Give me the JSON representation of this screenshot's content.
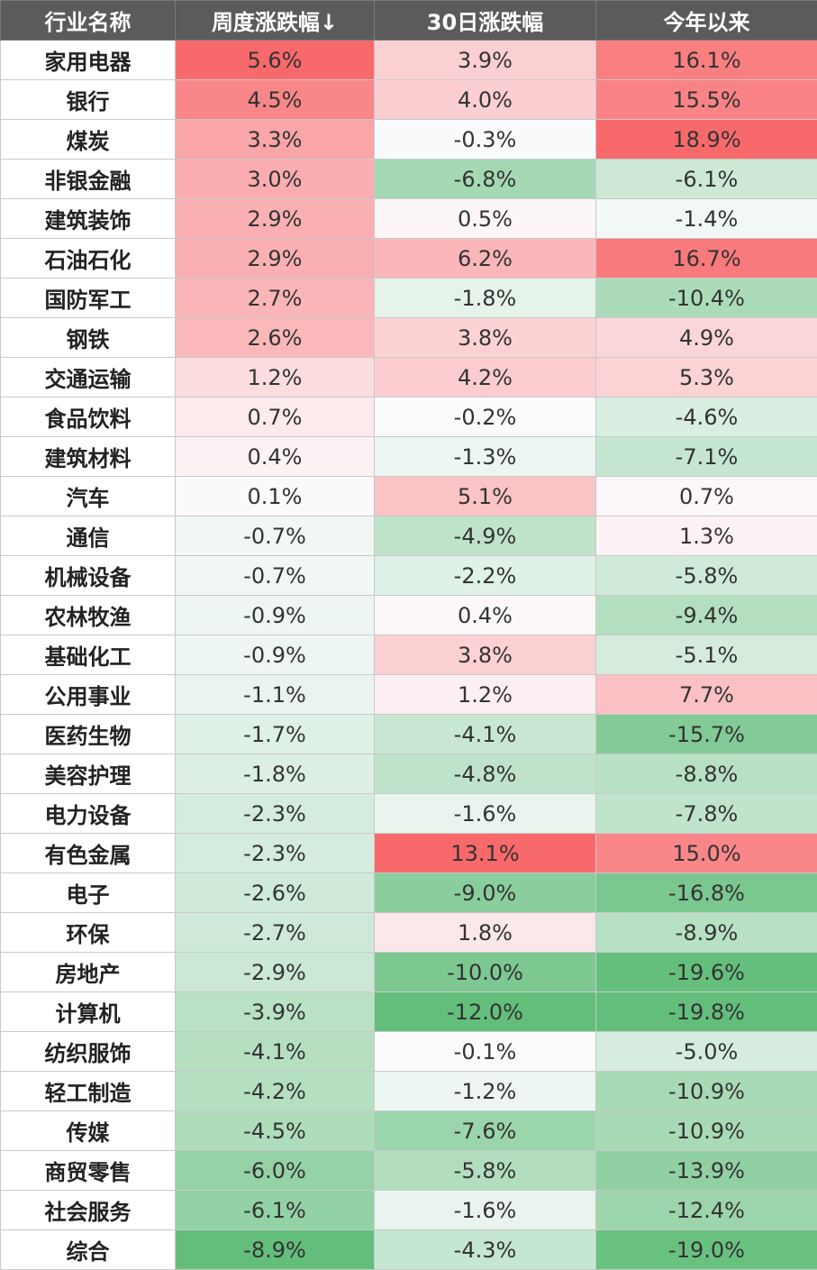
{
  "chart_data": {
    "type": "heatmap",
    "columns": [
      "行业名称",
      "周度涨跌幅↓",
      "30日涨跌幅",
      "今年以来"
    ],
    "rows": [
      {
        "name": "家用电器",
        "weekly": "5.6%",
        "d30": "3.9%",
        "ytd": "16.1%"
      },
      {
        "name": "银行",
        "weekly": "4.5%",
        "d30": "4.0%",
        "ytd": "15.5%"
      },
      {
        "name": "煤炭",
        "weekly": "3.3%",
        "d30": "-0.3%",
        "ytd": "18.9%"
      },
      {
        "name": "非银金融",
        "weekly": "3.0%",
        "d30": "-6.8%",
        "ytd": "-6.1%"
      },
      {
        "name": "建筑装饰",
        "weekly": "2.9%",
        "d30": "0.5%",
        "ytd": "-1.4%"
      },
      {
        "name": "石油石化",
        "weekly": "2.9%",
        "d30": "6.2%",
        "ytd": "16.7%"
      },
      {
        "name": "国防军工",
        "weekly": "2.7%",
        "d30": "-1.8%",
        "ytd": "-10.4%"
      },
      {
        "name": "钢铁",
        "weekly": "2.6%",
        "d30": "3.8%",
        "ytd": "4.9%"
      },
      {
        "name": "交通运输",
        "weekly": "1.2%",
        "d30": "4.2%",
        "ytd": "5.3%"
      },
      {
        "name": "食品饮料",
        "weekly": "0.7%",
        "d30": "-0.2%",
        "ytd": "-4.6%"
      },
      {
        "name": "建筑材料",
        "weekly": "0.4%",
        "d30": "-1.3%",
        "ytd": "-7.1%"
      },
      {
        "name": "汽车",
        "weekly": "0.1%",
        "d30": "5.1%",
        "ytd": "0.7%"
      },
      {
        "name": "通信",
        "weekly": "-0.7%",
        "d30": "-4.9%",
        "ytd": "1.3%"
      },
      {
        "name": "机械设备",
        "weekly": "-0.7%",
        "d30": "-2.2%",
        "ytd": "-5.8%"
      },
      {
        "name": "农林牧渔",
        "weekly": "-0.9%",
        "d30": "0.4%",
        "ytd": "-9.4%"
      },
      {
        "name": "基础化工",
        "weekly": "-0.9%",
        "d30": "3.8%",
        "ytd": "-5.1%"
      },
      {
        "name": "公用事业",
        "weekly": "-1.1%",
        "d30": "1.2%",
        "ytd": "7.7%"
      },
      {
        "name": "医药生物",
        "weekly": "-1.7%",
        "d30": "-4.1%",
        "ytd": "-15.7%"
      },
      {
        "name": "美容护理",
        "weekly": "-1.8%",
        "d30": "-4.8%",
        "ytd": "-8.8%"
      },
      {
        "name": "电力设备",
        "weekly": "-2.3%",
        "d30": "-1.6%",
        "ytd": "-7.8%"
      },
      {
        "name": "有色金属",
        "weekly": "-2.3%",
        "d30": "13.1%",
        "ytd": "15.0%"
      },
      {
        "name": "电子",
        "weekly": "-2.6%",
        "d30": "-9.0%",
        "ytd": "-16.8%"
      },
      {
        "name": "环保",
        "weekly": "-2.7%",
        "d30": "1.8%",
        "ytd": "-8.9%"
      },
      {
        "name": "房地产",
        "weekly": "-2.9%",
        "d30": "-10.0%",
        "ytd": "-19.6%"
      },
      {
        "name": "计算机",
        "weekly": "-3.9%",
        "d30": "-12.0%",
        "ytd": "-19.8%"
      },
      {
        "name": "纺织服饰",
        "weekly": "-4.1%",
        "d30": "-0.1%",
        "ytd": "-5.0%"
      },
      {
        "name": "轻工制造",
        "weekly": "-4.2%",
        "d30": "-1.2%",
        "ytd": "-10.9%"
      },
      {
        "name": "传媒",
        "weekly": "-4.5%",
        "d30": "-7.6%",
        "ytd": "-10.9%"
      },
      {
        "name": "商贸零售",
        "weekly": "-6.0%",
        "d30": "-5.8%",
        "ytd": "-13.9%"
      },
      {
        "name": "社会服务",
        "weekly": "-6.1%",
        "d30": "-1.6%",
        "ytd": "-12.4%"
      },
      {
        "name": "综合",
        "weekly": "-8.9%",
        "d30": "-4.3%",
        "ytd": "-19.0%"
      }
    ]
  },
  "colors": {
    "header_bg": "#5b5b5b",
    "header_text": "#ffffff",
    "positive": "#f8696b",
    "negative": "#63be7b",
    "neutral": "#fcfcff"
  }
}
